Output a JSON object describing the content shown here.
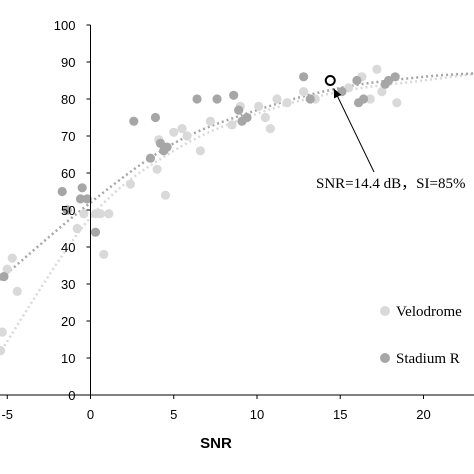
{
  "chart_data": {
    "type": "scatter",
    "title": "",
    "xlabel": "SNR",
    "ylabel": "",
    "xlim": [
      -5.5,
      23.5
    ],
    "ylim": [
      0,
      100
    ],
    "x_ticks": [
      -5,
      0,
      5,
      10,
      15,
      20
    ],
    "x_tick_labels": [
      "-5",
      "0",
      "5",
      "10",
      "15",
      "20"
    ],
    "y_ticks": [
      0,
      10,
      20,
      30,
      40,
      50,
      60,
      70,
      80,
      90,
      100
    ],
    "y_tick_labels": [
      "0",
      "10",
      "20",
      "30",
      "40",
      "50",
      "60",
      "70",
      "80",
      "90",
      "100"
    ],
    "grid": false,
    "legend_position": "right",
    "series": [
      {
        "name": "Velodrome",
        "color": "#d9d9d9",
        "points": [
          [
            -5.4,
            12
          ],
          [
            -5.3,
            17
          ],
          [
            -5.0,
            34
          ],
          [
            -4.7,
            37
          ],
          [
            -4.4,
            28
          ],
          [
            -0.8,
            45
          ],
          [
            -0.4,
            49
          ],
          [
            0.3,
            49
          ],
          [
            0.6,
            49
          ],
          [
            0.8,
            38
          ],
          [
            1.1,
            49
          ],
          [
            2.4,
            57
          ],
          [
            4.0,
            61
          ],
          [
            4.1,
            69
          ],
          [
            4.5,
            54
          ],
          [
            5.0,
            71
          ],
          [
            5.5,
            72
          ],
          [
            5.8,
            70
          ],
          [
            6.6,
            66
          ],
          [
            7.2,
            74
          ],
          [
            8.5,
            73
          ],
          [
            9.0,
            78
          ],
          [
            10.1,
            78
          ],
          [
            10.5,
            75
          ],
          [
            10.8,
            72
          ],
          [
            11.2,
            80
          ],
          [
            11.8,
            79
          ],
          [
            12.8,
            82
          ],
          [
            13.5,
            80
          ],
          [
            15.5,
            83
          ],
          [
            16.3,
            86
          ],
          [
            16.8,
            80
          ],
          [
            17.2,
            88
          ],
          [
            17.5,
            82
          ],
          [
            18.4,
            79
          ],
          [
            23.3,
            87
          ]
        ],
        "fit": [
          [
            -5.5,
            11
          ],
          [
            0,
            48
          ],
          [
            5,
            66
          ],
          [
            10,
            76
          ],
          [
            15,
            82
          ],
          [
            20,
            85
          ],
          [
            23.5,
            87
          ]
        ]
      },
      {
        "name": "Stadium R",
        "color": "#a6a6a6",
        "points": [
          [
            -5.2,
            32
          ],
          [
            -1.7,
            55
          ],
          [
            -1.4,
            50
          ],
          [
            -0.6,
            53
          ],
          [
            -0.5,
            56
          ],
          [
            -0.2,
            53
          ],
          [
            0.3,
            44
          ],
          [
            2.6,
            74
          ],
          [
            3.6,
            64
          ],
          [
            3.9,
            75
          ],
          [
            4.2,
            68
          ],
          [
            4.4,
            66
          ],
          [
            4.6,
            67
          ],
          [
            6.4,
            80
          ],
          [
            7.6,
            80
          ],
          [
            8.6,
            81
          ],
          [
            8.9,
            77
          ],
          [
            9.1,
            74
          ],
          [
            9.4,
            75
          ],
          [
            12.8,
            86
          ],
          [
            13.2,
            80
          ],
          [
            15.1,
            82
          ],
          [
            16.0,
            85
          ],
          [
            16.1,
            79
          ],
          [
            16.4,
            80
          ],
          [
            17.7,
            84
          ],
          [
            17.9,
            85
          ],
          [
            18.3,
            86
          ]
        ],
        "fit": [
          [
            -5.5,
            31
          ],
          [
            0,
            52
          ],
          [
            5,
            68
          ],
          [
            10,
            77
          ],
          [
            15,
            83
          ],
          [
            20,
            86
          ],
          [
            23.5,
            87
          ]
        ]
      }
    ],
    "annotation": {
      "label": "SNR=14.4 dB，SI=85%",
      "point": [
        14.4,
        85
      ]
    }
  }
}
